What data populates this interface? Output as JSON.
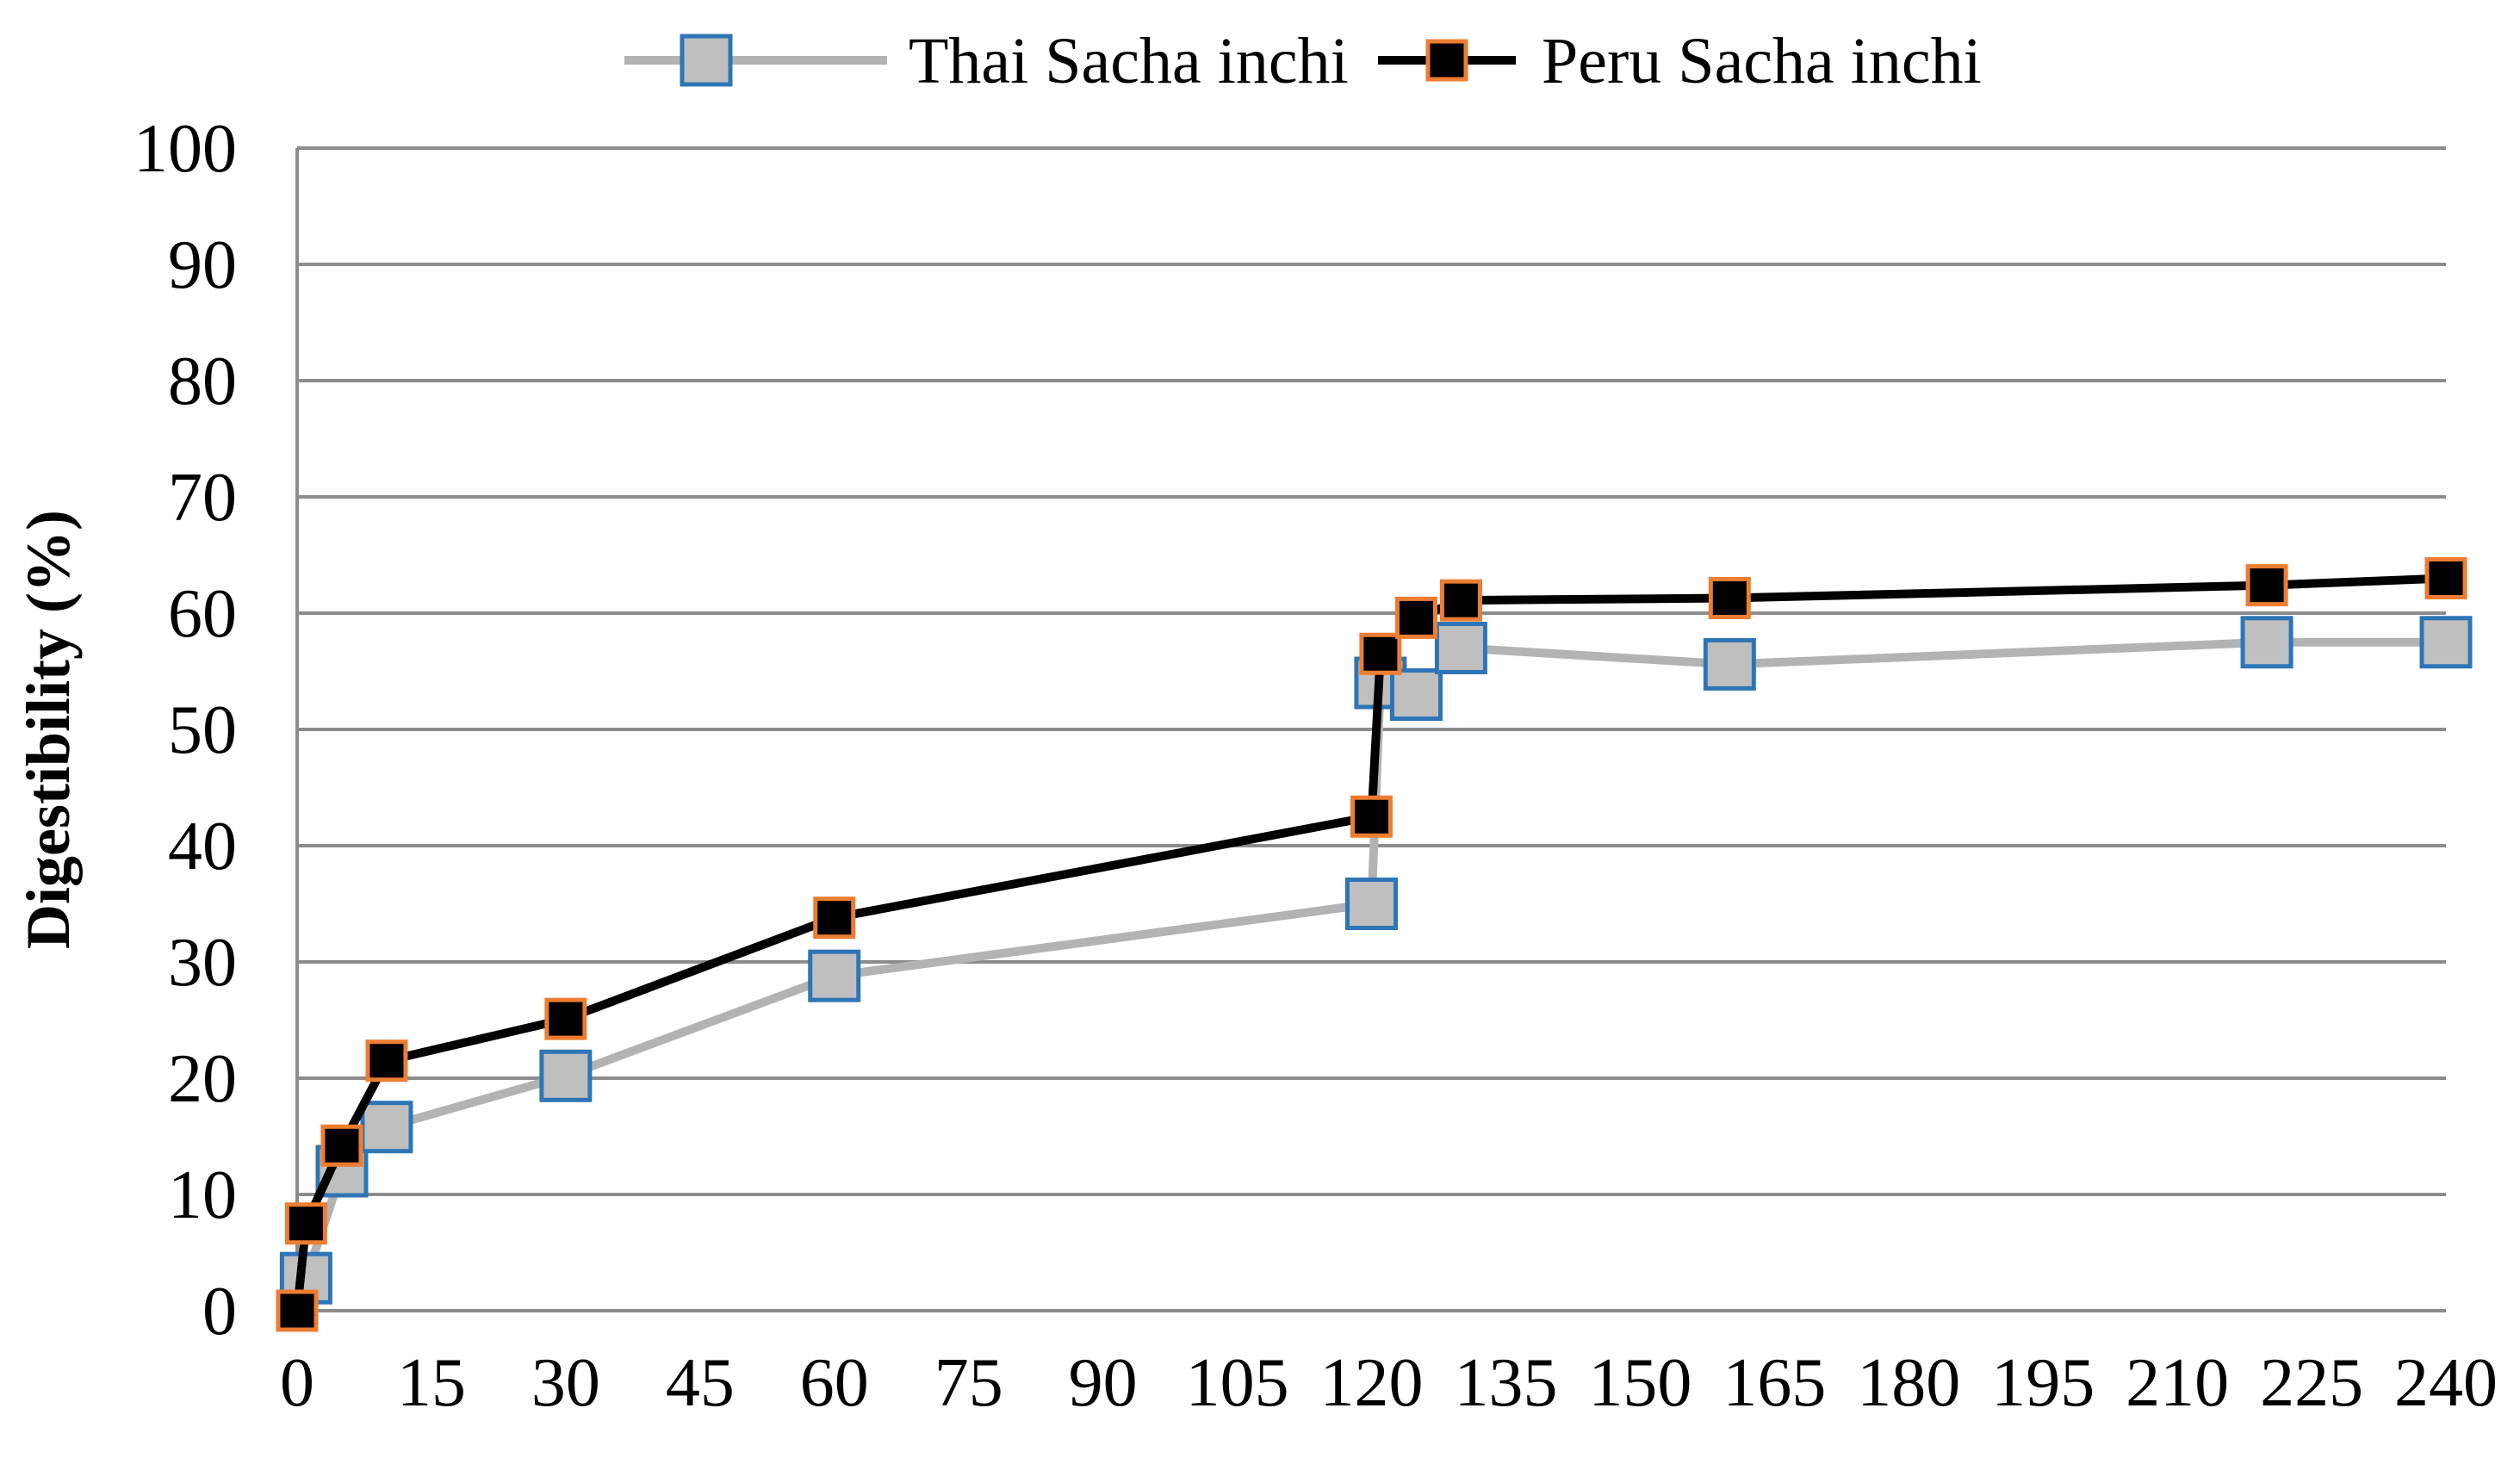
{
  "chart_data": {
    "type": "line",
    "title": "",
    "xlabel": "",
    "ylabel": "Digestibility (%)",
    "xlim": [
      0,
      240
    ],
    "ylim": [
      0,
      100
    ],
    "xticks": [
      "0",
      "15",
      "30",
      "45",
      "60",
      "75",
      "90",
      "105",
      "120",
      "135",
      "150",
      "165",
      "180",
      "195",
      "210",
      "225",
      "240"
    ],
    "yticks": [
      "0",
      "10",
      "20",
      "30",
      "40",
      "50",
      "60",
      "70",
      "80",
      "90",
      "100"
    ],
    "grid": true,
    "legend_position": "top",
    "series": [
      {
        "name": "Thai Sacha inchi",
        "line_color": "#b3b3b3",
        "marker_fill": "#bfbfbf",
        "marker_edge": "#2e75b6",
        "x": [
          1,
          5,
          10,
          30,
          60,
          120,
          121,
          125,
          130,
          160,
          220,
          240
        ],
        "y": [
          2.8,
          12.0,
          15.8,
          20.2,
          28.8,
          35.0,
          54.0,
          53.0,
          57.0,
          55.6,
          57.5,
          57.5
        ]
      },
      {
        "name": "Peru Sacha inchi",
        "line_color": "#000000",
        "marker_fill": "#000000",
        "marker_edge": "#ed7d31",
        "x": [
          0,
          1,
          5,
          10,
          30,
          60,
          120,
          121,
          125,
          130,
          160,
          220,
          240
        ],
        "y": [
          0.0,
          7.5,
          14.2,
          21.5,
          25.1,
          33.8,
          42.5,
          56.5,
          59.6,
          61.1,
          61.3,
          62.4,
          63.0
        ]
      }
    ]
  }
}
